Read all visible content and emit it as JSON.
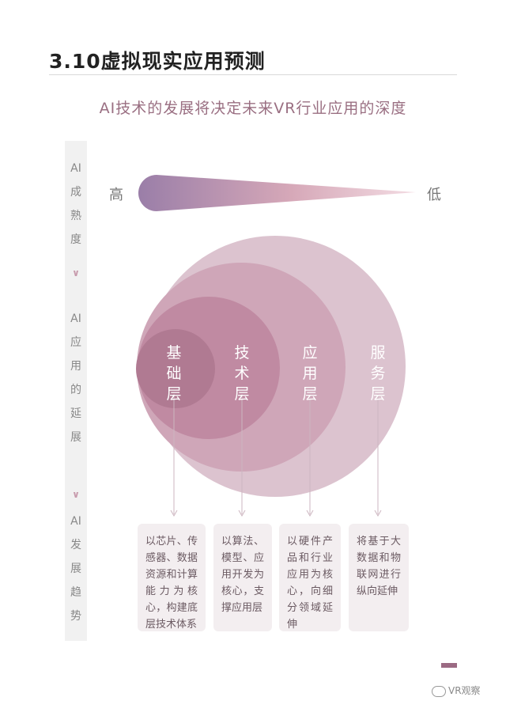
{
  "page": {
    "title": "3.10虚拟现实应用预测",
    "subtitle": "AI技术的发展将决定未来VR行业应用的深度"
  },
  "left_labels": {
    "maturity": [
      "AI",
      "成",
      "熟",
      "度"
    ],
    "extension": [
      "AI",
      "应",
      "用",
      "的",
      "延",
      "展"
    ],
    "trend": [
      "AI",
      "发",
      "展",
      "趋",
      "势"
    ]
  },
  "gradient": {
    "high_label": "高",
    "low_label": "低"
  },
  "layers": [
    {
      "name": "基础层",
      "chars": [
        "基",
        "础",
        "层"
      ],
      "description": "以芯片、传感器、数据资源和计算能力为核心，构建底层技术体系",
      "color": "#b07790"
    },
    {
      "name": "技术层",
      "chars": [
        "技",
        "术",
        "层"
      ],
      "description": "以算法、模型、应用开发为核心，支撑应用层",
      "color": "#bb8aa0"
    },
    {
      "name": "应用层",
      "chars": [
        "应",
        "用",
        "层"
      ],
      "description": "以硬件产品和行业应用为核心，向细分领域延伸",
      "color": "#c9a0b3"
    },
    {
      "name": "服务层",
      "chars": [
        "服",
        "务",
        "层"
      ],
      "description": "将基于大数据和物联网进行纵向延伸",
      "color": "#d8bdc9"
    }
  ],
  "watermark": {
    "text": "VR观察",
    "icon": "wechat-icon"
  },
  "colors": {
    "gradient_start": "#9a7ea8",
    "gradient_end": "#f2d6de",
    "accent": "#9b6a83"
  }
}
